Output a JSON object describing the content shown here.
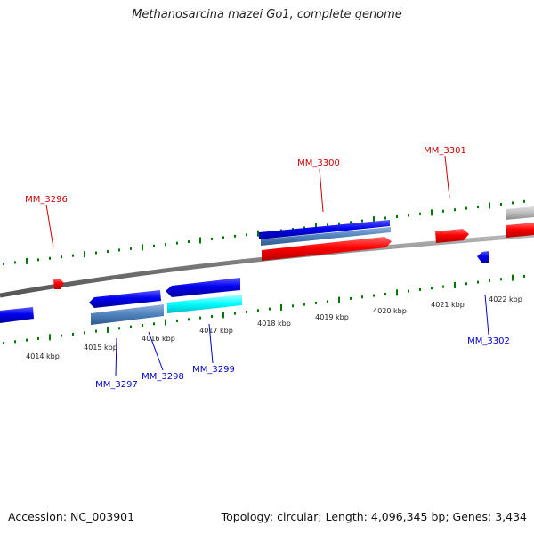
{
  "title": "Methanosarcina mazei Go1, complete genome",
  "footer": {
    "accession": "Accession: NC_003901",
    "summary": "Topology: circular; Length: 4,096,345 bp; Genes: 3,434"
  },
  "scale_ticks": [
    {
      "label": "4014 kbp"
    },
    {
      "label": "4015 kbp"
    },
    {
      "label": "4016 kbp"
    },
    {
      "label": "4017 kbp"
    },
    {
      "label": "4018 kbp"
    },
    {
      "label": "4019 kbp"
    },
    {
      "label": "4020 kbp"
    },
    {
      "label": "4021 kbp"
    },
    {
      "label": "4022 kbp"
    }
  ],
  "gene_labels": {
    "forward": [
      "MM_3296",
      "MM_3300",
      "MM_3301"
    ],
    "reverse": [
      "MM_3297",
      "MM_3298",
      "MM_3299",
      "MM_3302"
    ]
  },
  "colors": {
    "forward_label": "#cc0000",
    "reverse_label": "#0000cc",
    "forward_gene": "#ff0000",
    "reverse_gene": "#0000ee",
    "tick": "#007700",
    "backbone": "#888888",
    "gene_blue_steel": "#4f81bd",
    "gene_cyan": "#00ffff",
    "gene_gray": "#bbbbbb"
  }
}
